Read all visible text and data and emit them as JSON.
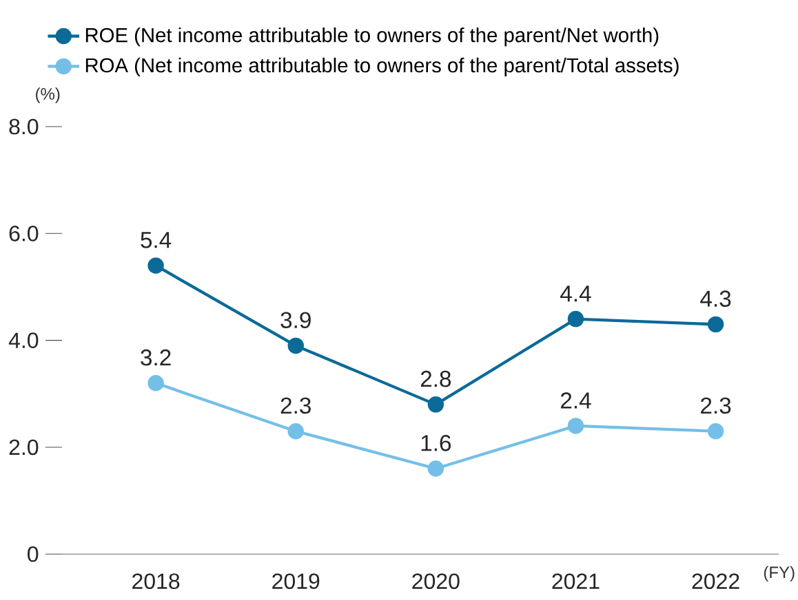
{
  "chart_data": {
    "type": "line",
    "xlabel": "(FY)",
    "ylabel": "(%)",
    "categories": [
      "2018",
      "2019",
      "2020",
      "2021",
      "2022"
    ],
    "series": [
      {
        "name": "ROE (Net income attributable to owners of the parent/Net worth)",
        "color": "#0b6a98",
        "values": [
          5.4,
          3.9,
          2.8,
          4.4,
          4.3
        ]
      },
      {
        "name": "ROA (Net income attributable to owners of the parent/Total assets)",
        "color": "#74bfe8",
        "values": [
          3.2,
          2.3,
          1.6,
          2.4,
          2.3
        ]
      }
    ],
    "ylim": [
      0,
      8
    ],
    "yticks": [
      {
        "value": 0,
        "label": "0"
      },
      {
        "value": 2,
        "label": "2.0"
      },
      {
        "value": 4,
        "label": "4.0"
      },
      {
        "value": 6,
        "label": "6.0"
      },
      {
        "value": 8,
        "label": "8.0"
      }
    ],
    "data_labels": true,
    "marker": "circle",
    "line_style": "solid",
    "grid": false,
    "legend": "top left"
  }
}
